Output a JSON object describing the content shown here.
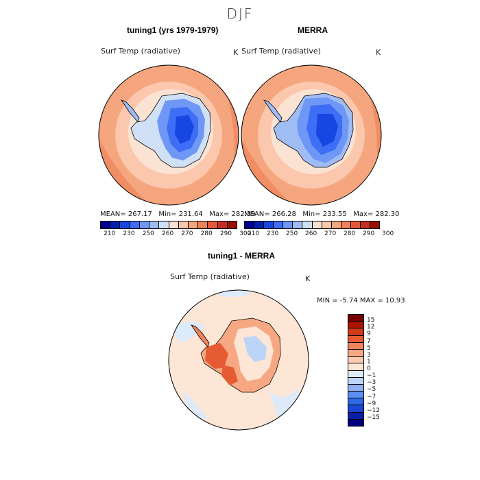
{
  "season": "DJF",
  "panels": {
    "model": {
      "title": "tuning1 (yrs 1979-1979)",
      "variable": "Surf Temp (radiative)",
      "unit": "K",
      "stats": {
        "mean_label": "MEAN=",
        "mean": "267.17",
        "min_label": "Min=",
        "min": "231.64",
        "max_label": "Max=",
        "max": "282.39"
      }
    },
    "obs": {
      "title": "MERRA",
      "variable": "Surf Temp (radiative)",
      "unit": "K",
      "stats": {
        "mean_label": "MEAN=",
        "mean": "266.28",
        "min_label": "Min=",
        "min": "233.55",
        "max_label": "Max=",
        "max": "282.30"
      }
    },
    "diff": {
      "title": "tuning1 - MERRA",
      "variable": "Surf Temp (radiative)",
      "unit": "K",
      "stats": {
        "min_label": "MIN =",
        "min": "-5.74",
        "max_label": "MAX =",
        "max": "10.93"
      }
    }
  },
  "abs_colorbar": {
    "colors": [
      "#00008c",
      "#0020b0",
      "#1846e0",
      "#3d6ef5",
      "#6f97f5",
      "#a0bcf5",
      "#d0e0f7",
      "#fbe3d4",
      "#fbc7ad",
      "#f6a67f",
      "#f0835a",
      "#e4583a",
      "#c63020",
      "#981000"
    ],
    "tick_labels": [
      "210",
      "230",
      "250",
      "260",
      "270",
      "280",
      "290",
      "300"
    ]
  },
  "diff_colorbar": {
    "colors": [
      "#000080",
      "#0a1ea8",
      "#1a46d2",
      "#2f6ae6",
      "#5e8ef0",
      "#8fb0f3",
      "#bcd4f7",
      "#ddeafa",
      "#fde6d6",
      "#fbcab0",
      "#f7a882",
      "#f0845c",
      "#e55c34",
      "#cf3a18",
      "#a81500",
      "#7a0000"
    ],
    "tick_labels": [
      "15",
      "12",
      "9",
      "7",
      "5",
      "3",
      "1",
      "0",
      "−1",
      "−3",
      "−5",
      "−7",
      "−9",
      "−12",
      "−15"
    ]
  }
}
